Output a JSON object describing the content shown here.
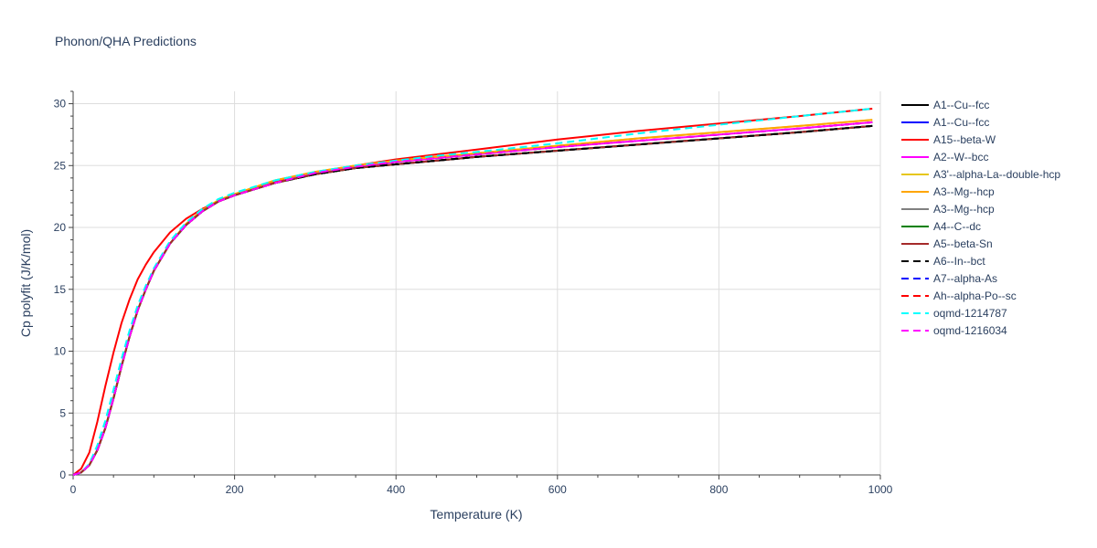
{
  "chart_data": {
    "type": "line",
    "title": "Phonon/QHA Predictions",
    "xlabel": "Temperature (K)",
    "ylabel": "Cp polyfit (J/K/mol)",
    "xlim": [
      0,
      1000
    ],
    "ylim": [
      0,
      31
    ],
    "x_ticks": [
      0,
      200,
      400,
      600,
      800,
      1000
    ],
    "y_ticks": [
      0,
      5,
      10,
      15,
      20,
      25,
      30
    ],
    "grid": true,
    "legend_position": "right",
    "x": [
      0,
      10,
      20,
      30,
      40,
      50,
      60,
      70,
      80,
      90,
      100,
      120,
      140,
      160,
      180,
      200,
      250,
      300,
      350,
      400,
      450,
      500,
      600,
      700,
      800,
      900,
      990
    ],
    "series": [
      {
        "name": "A1--Cu--fcc",
        "color": "#000000",
        "dash": "solid",
        "values": [
          0,
          0.2,
          0.8,
          2.0,
          3.8,
          6.2,
          8.8,
          11.2,
          13.3,
          15.0,
          16.5,
          18.7,
          20.2,
          21.3,
          22.1,
          22.6,
          23.6,
          24.3,
          24.8,
          25.1,
          25.4,
          25.7,
          26.2,
          26.7,
          27.2,
          27.7,
          28.2
        ]
      },
      {
        "name": "A1--Cu--fcc",
        "color": "#0000ff",
        "dash": "solid",
        "values": [
          0,
          0.2,
          0.8,
          2.0,
          3.8,
          6.2,
          8.8,
          11.2,
          13.3,
          15.0,
          16.5,
          18.7,
          20.2,
          21.3,
          22.1,
          22.6,
          23.6,
          24.3,
          24.8,
          25.1,
          25.4,
          25.7,
          26.2,
          26.7,
          27.2,
          27.7,
          28.2
        ]
      },
      {
        "name": "A15--beta-W",
        "color": "#ff0000",
        "dash": "solid",
        "values": [
          0,
          0.5,
          1.8,
          4.3,
          7.2,
          9.9,
          12.3,
          14.2,
          15.8,
          17.0,
          18.0,
          19.6,
          20.7,
          21.5,
          22.1,
          22.6,
          23.7,
          24.4,
          25.0,
          25.5,
          25.9,
          26.3,
          27.1,
          27.8,
          28.4,
          29.0,
          29.6
        ]
      },
      {
        "name": "A2--W--bcc",
        "color": "#ff00ff",
        "dash": "solid",
        "values": [
          0,
          0.2,
          0.8,
          2.0,
          3.8,
          6.2,
          8.8,
          11.2,
          13.3,
          15.0,
          16.5,
          18.7,
          20.2,
          21.3,
          22.1,
          22.6,
          23.6,
          24.4,
          24.9,
          25.3,
          25.6,
          25.9,
          26.5,
          27.0,
          27.5,
          28.0,
          28.5
        ]
      },
      {
        "name": "A3'--alpha-La--double-hcp",
        "color": "#e6c619",
        "dash": "solid",
        "values": [
          0,
          0.2,
          0.8,
          2.0,
          3.8,
          6.2,
          8.8,
          11.2,
          13.3,
          15.0,
          16.5,
          18.7,
          20.3,
          21.4,
          22.2,
          22.7,
          23.8,
          24.5,
          25.0,
          25.4,
          25.7,
          26.0,
          26.6,
          27.2,
          27.7,
          28.2,
          28.7
        ]
      },
      {
        "name": "A3--Mg--hcp",
        "color": "#ffa500",
        "dash": "solid",
        "values": [
          0,
          0.2,
          0.8,
          2.0,
          3.8,
          6.2,
          8.8,
          11.2,
          13.3,
          15.0,
          16.5,
          18.7,
          20.3,
          21.4,
          22.2,
          22.7,
          23.8,
          24.5,
          25.0,
          25.4,
          25.7,
          26.0,
          26.6,
          27.2,
          27.7,
          28.2,
          28.7
        ]
      },
      {
        "name": "A3--Mg--hcp",
        "color": "#808080",
        "dash": "solid",
        "values": [
          0,
          0.2,
          0.8,
          2.0,
          3.8,
          6.2,
          8.8,
          11.2,
          13.3,
          15.0,
          16.5,
          18.7,
          20.2,
          21.3,
          22.1,
          22.6,
          23.6,
          24.3,
          24.8,
          25.1,
          25.4,
          25.7,
          26.2,
          26.7,
          27.2,
          27.7,
          28.2
        ]
      },
      {
        "name": "A4--C--dc",
        "color": "#008000",
        "dash": "solid",
        "values": [
          0,
          0.2,
          0.8,
          2.0,
          3.8,
          6.2,
          8.8,
          11.2,
          13.3,
          15.0,
          16.5,
          18.7,
          20.2,
          21.3,
          22.1,
          22.6,
          23.6,
          24.3,
          24.8,
          25.1,
          25.4,
          25.7,
          26.2,
          26.7,
          27.2,
          27.7,
          28.2
        ]
      },
      {
        "name": "A5--beta-Sn",
        "color": "#a52a2a",
        "dash": "solid",
        "values": [
          0,
          0.2,
          0.8,
          2.0,
          3.8,
          6.2,
          8.8,
          11.2,
          13.3,
          15.0,
          16.5,
          18.7,
          20.2,
          21.3,
          22.1,
          22.6,
          23.6,
          24.3,
          24.8,
          25.1,
          25.4,
          25.7,
          26.2,
          26.7,
          27.2,
          27.7,
          28.2
        ]
      },
      {
        "name": "A6--In--bct",
        "color": "#000000",
        "dash": "dash",
        "values": [
          0,
          0.2,
          0.8,
          2.0,
          3.8,
          6.2,
          8.8,
          11.2,
          13.3,
          15.0,
          16.5,
          18.7,
          20.2,
          21.3,
          22.1,
          22.6,
          23.6,
          24.3,
          24.8,
          25.1,
          25.4,
          25.7,
          26.2,
          26.7,
          27.2,
          27.7,
          28.2
        ]
      },
      {
        "name": "A7--alpha-As",
        "color": "#0000ff",
        "dash": "dash",
        "values": [
          0,
          0.2,
          0.8,
          2.0,
          3.8,
          6.2,
          8.8,
          11.2,
          13.3,
          15.0,
          16.5,
          18.7,
          20.2,
          21.3,
          22.1,
          22.6,
          23.6,
          24.4,
          24.9,
          25.3,
          25.6,
          25.9,
          26.5,
          27.0,
          27.5,
          28.0,
          28.5
        ]
      },
      {
        "name": "Ah--alpha-Po--sc",
        "color": "#ff0000",
        "dash": "dash",
        "values": [
          0,
          0.2,
          0.8,
          2.0,
          3.8,
          6.2,
          8.8,
          11.2,
          13.3,
          15.0,
          16.5,
          18.7,
          20.2,
          21.3,
          22.1,
          22.6,
          23.6,
          24.4,
          24.9,
          25.3,
          25.6,
          25.9,
          26.5,
          27.0,
          27.5,
          28.0,
          28.5
        ]
      },
      {
        "name": "oqmd-1214787",
        "color": "#00ffff",
        "dash": "dash",
        "values": [
          0,
          0.2,
          0.9,
          2.4,
          4.4,
          6.9,
          9.4,
          11.7,
          13.7,
          15.3,
          16.7,
          18.9,
          20.4,
          21.5,
          22.3,
          22.8,
          23.8,
          24.5,
          25.0,
          25.4,
          25.8,
          26.1,
          26.8,
          27.6,
          28.3,
          29.0,
          29.6
        ]
      },
      {
        "name": "oqmd-1216034",
        "color": "#ff00ff",
        "dash": "dash",
        "values": [
          0,
          0.2,
          0.8,
          2.0,
          3.8,
          6.2,
          8.8,
          11.2,
          13.3,
          15.0,
          16.5,
          18.7,
          20.2,
          21.3,
          22.1,
          22.6,
          23.6,
          24.4,
          24.9,
          25.3,
          25.6,
          25.9,
          26.5,
          27.0,
          27.5,
          28.0,
          28.5
        ]
      }
    ]
  }
}
